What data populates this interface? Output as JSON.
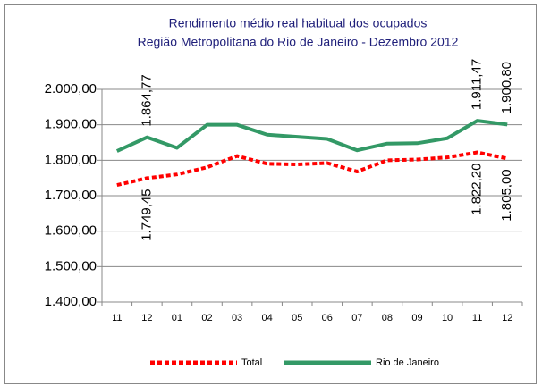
{
  "chart_data": {
    "type": "line",
    "title": "Rendimento médio real habitual dos ocupados",
    "subtitle": "Região Metropolitana do Rio de Janeiro - Dezembro 2012",
    "categories": [
      "11",
      "12",
      "01",
      "02",
      "03",
      "04",
      "05",
      "06",
      "07",
      "08",
      "09",
      "10",
      "11",
      "12"
    ],
    "series": [
      {
        "name": "Total",
        "color": "#ff0000",
        "style": "dotted",
        "values": [
          1730,
          1749.45,
          1760,
          1780,
          1812,
          1790,
          1788,
          1792,
          1768,
          1800,
          1802,
          1808,
          1822.2,
          1805.0
        ],
        "value_labels": [
          null,
          "1.749,45",
          null,
          null,
          null,
          null,
          null,
          null,
          null,
          null,
          null,
          null,
          "1.822,20",
          "1.805,00"
        ]
      },
      {
        "name": "Rio de Janeiro",
        "color": "#339966",
        "style": "solid",
        "values": [
          1826,
          1864.77,
          1835,
          1900,
          1900,
          1872,
          1866,
          1860,
          1828,
          1847,
          1848,
          1862,
          1911.47,
          1900.8
        ],
        "value_labels": [
          null,
          "1.864,77",
          null,
          null,
          null,
          null,
          null,
          null,
          null,
          null,
          null,
          null,
          "1.911,47",
          "1.900,80"
        ]
      }
    ],
    "ylim": [
      1400,
      2000
    ],
    "yticks": [
      {
        "value": 1400,
        "label": "1.400,00"
      },
      {
        "value": 1500,
        "label": "1.500,00"
      },
      {
        "value": 1600,
        "label": "1.600,00"
      },
      {
        "value": 1700,
        "label": "1.700,00"
      },
      {
        "value": 1800,
        "label": "1.800,00"
      },
      {
        "value": 1900,
        "label": "1.900,00"
      },
      {
        "value": 2000,
        "label": "2.000,00"
      }
    ],
    "grid": true,
    "legend": "bottom"
  }
}
